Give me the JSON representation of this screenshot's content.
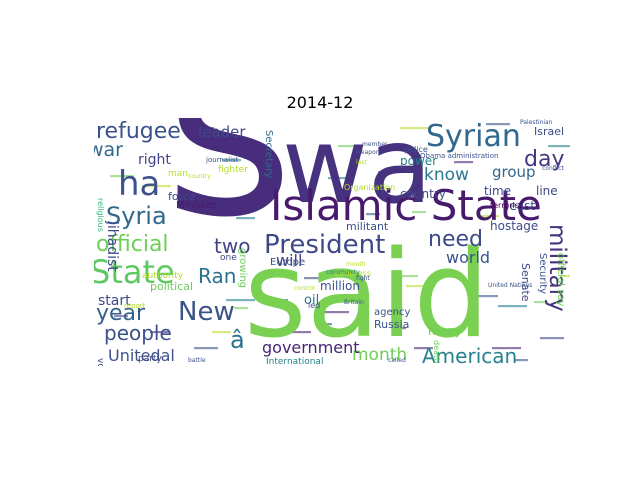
{
  "chart_data": {
    "type": "wordcloud",
    "title": "2014-12",
    "words": [
      {
        "text": "s",
        "weight": 100,
        "color": "#472d7b"
      },
      {
        "text": "wa",
        "weight": 60,
        "color": "#46327e"
      },
      {
        "text": "said",
        "weight": 78,
        "color": "#7ad151"
      },
      {
        "text": "Islamic State",
        "weight": 30,
        "color": "#481a6c"
      },
      {
        "text": "ha",
        "weight": 20,
        "color": "#3b528b"
      },
      {
        "text": "President",
        "weight": 18,
        "color": "#3e4989"
      },
      {
        "text": "State",
        "weight": 22,
        "color": "#5ec962"
      },
      {
        "text": "Syrian",
        "weight": 20,
        "color": "#31688e"
      },
      {
        "text": "refugee",
        "weight": 14,
        "color": "#3b528b"
      },
      {
        "text": "Syria",
        "weight": 15,
        "color": "#31688e"
      },
      {
        "text": "official",
        "weight": 14,
        "color": "#6ece58"
      },
      {
        "text": "year",
        "weight": 15,
        "color": "#355f8d"
      },
      {
        "text": "New",
        "weight": 16,
        "color": "#3b528b"
      },
      {
        "text": "people",
        "weight": 13,
        "color": "#3b528b"
      },
      {
        "text": "Ran",
        "weight": 13,
        "color": "#2c728e"
      },
      {
        "text": "two",
        "weight": 13,
        "color": "#414487"
      },
      {
        "text": "need",
        "weight": 13,
        "color": "#3e4a89"
      },
      {
        "text": "know",
        "weight": 12,
        "color": "#2a788e"
      },
      {
        "text": "day",
        "weight": 12,
        "color": "#453781"
      },
      {
        "text": "war",
        "weight": 11,
        "color": "#31688e"
      },
      {
        "text": "leader",
        "weight": 10,
        "color": "#3e4989"
      },
      {
        "text": "right",
        "weight": 9,
        "color": "#414487"
      },
      {
        "text": "military",
        "weight": 12,
        "color": "#46337f"
      },
      {
        "text": "American",
        "weight": 11,
        "color": "#26828e"
      },
      {
        "text": "month",
        "weight": 10,
        "color": "#6ece58"
      },
      {
        "text": "government",
        "weight": 9,
        "color": "#482475"
      },
      {
        "text": "Unitedal",
        "weight": 9,
        "color": "#3b528b"
      },
      {
        "text": "world",
        "weight": 9,
        "color": "#3b528b"
      },
      {
        "text": "group",
        "weight": 9,
        "color": "#31688e"
      },
      {
        "text": "will",
        "weight": 9,
        "color": "#414487"
      },
      {
        "text": "start",
        "weight": 8,
        "color": "#3e4989"
      },
      {
        "text": "jihadist",
        "weight": 8,
        "color": "#3e4a89"
      },
      {
        "text": "â",
        "weight": 10,
        "color": "#2c728e"
      },
      {
        "text": "Secretary",
        "weight": 5,
        "color": "#31688e"
      },
      {
        "text": "force",
        "weight": 6,
        "color": "#3e4989"
      },
      {
        "text": "oil",
        "weight": 7,
        "color": "#2c728e"
      },
      {
        "text": "million",
        "weight": 6,
        "color": "#3b528b"
      },
      {
        "text": "agency",
        "weight": 5,
        "color": "#3b528b"
      },
      {
        "text": "Senate",
        "weight": 5,
        "color": "#414487"
      },
      {
        "text": "Security",
        "weight": 5,
        "color": "#3b528b"
      },
      {
        "text": "official say",
        "weight": 5,
        "color": "#6ece58"
      },
      {
        "text": "hostage",
        "weight": 5,
        "color": "#3e4989"
      },
      {
        "text": "least",
        "weight": 5,
        "color": "#3e4989"
      },
      {
        "text": "time",
        "weight": 5,
        "color": "#3e4989"
      },
      {
        "text": "line",
        "weight": 5,
        "color": "#3e4989"
      },
      {
        "text": "country",
        "weight": 5,
        "color": "#3e4989"
      },
      {
        "text": "Israel",
        "weight": 5,
        "color": "#3e4989"
      },
      {
        "text": "power",
        "weight": 5,
        "color": "#26828e"
      },
      {
        "text": "Russia",
        "weight": 5,
        "color": "#3b528b"
      },
      {
        "text": "many",
        "weight": 5,
        "color": "#6ece58"
      },
      {
        "text": "political",
        "weight": 5,
        "color": "#6ece58"
      },
      {
        "text": "Europe",
        "weight": 4,
        "color": "#3b528b"
      },
      {
        "text": "militant",
        "weight": 5,
        "color": "#3b528b"
      },
      {
        "text": "Minister",
        "weight": 4,
        "color": "#481a6c"
      },
      {
        "text": "growing",
        "weight": 4,
        "color": "#6ece58"
      },
      {
        "text": "party",
        "weight": 4,
        "color": "#414487"
      },
      {
        "text": "vote",
        "weight": 4,
        "color": "#3e4a89"
      },
      {
        "text": "International",
        "weight": 4,
        "color": "#26828e"
      },
      {
        "text": "one",
        "weight": 4,
        "color": "#414487"
      },
      {
        "text": "authority",
        "weight": 4,
        "color": "#b5de2b"
      },
      {
        "text": "man",
        "weight": 3,
        "color": "#b5de2b"
      },
      {
        "text": "fighter",
        "weight": 3,
        "color": "#b5de2b"
      },
      {
        "text": "Organization",
        "weight": 3,
        "color": "#b5de2b"
      },
      {
        "text": "Congress",
        "weight": 3,
        "color": "#b5de2b"
      },
      {
        "text": "terrorist",
        "weight": 3,
        "color": "#440154"
      },
      {
        "text": "Obama administration",
        "weight": 2,
        "color": "#3b528b"
      },
      {
        "text": "death",
        "weight": 3,
        "color": "#6ece58"
      },
      {
        "text": "led",
        "weight": 3,
        "color": "#3b528b"
      },
      {
        "text": "police",
        "weight": 3,
        "color": "#3b528b"
      },
      {
        "text": "journalist",
        "weight": 3,
        "color": "#3b528b"
      },
      {
        "text": "report",
        "weight": 3,
        "color": "#b5de2b"
      },
      {
        "text": "religious",
        "weight": 3,
        "color": "#35b779"
      },
      {
        "text": "United Nations",
        "weight": 2,
        "color": "#3b528b"
      },
      {
        "text": "month",
        "weight": 2,
        "color": "#b5de2b"
      },
      {
        "text": "member",
        "weight": 2,
        "color": "#3b528b"
      },
      {
        "text": "country",
        "weight": 2,
        "color": "#b5de2b"
      },
      {
        "text": "conflict",
        "weight": 2,
        "color": "#3b528b"
      },
      {
        "text": "community",
        "weight": 2,
        "color": "#26828e"
      },
      {
        "text": "Palestinian",
        "weight": 2,
        "color": "#3b528b"
      },
      {
        "text": "battle",
        "weight": 2,
        "color": "#3b528b"
      },
      {
        "text": "called",
        "weight": 2,
        "color": "#3b528b"
      },
      {
        "text": "weapon",
        "weight": 2,
        "color": "#3b528b"
      },
      {
        "text": "fight",
        "weight": 2,
        "color": "#3b528b"
      },
      {
        "text": "control",
        "weight": 2,
        "color": "#b5de2b"
      },
      {
        "text": "last",
        "weight": 2,
        "color": "#b5de2b"
      },
      {
        "text": "Britain",
        "weight": 2,
        "color": "#3b528b"
      }
    ]
  }
}
